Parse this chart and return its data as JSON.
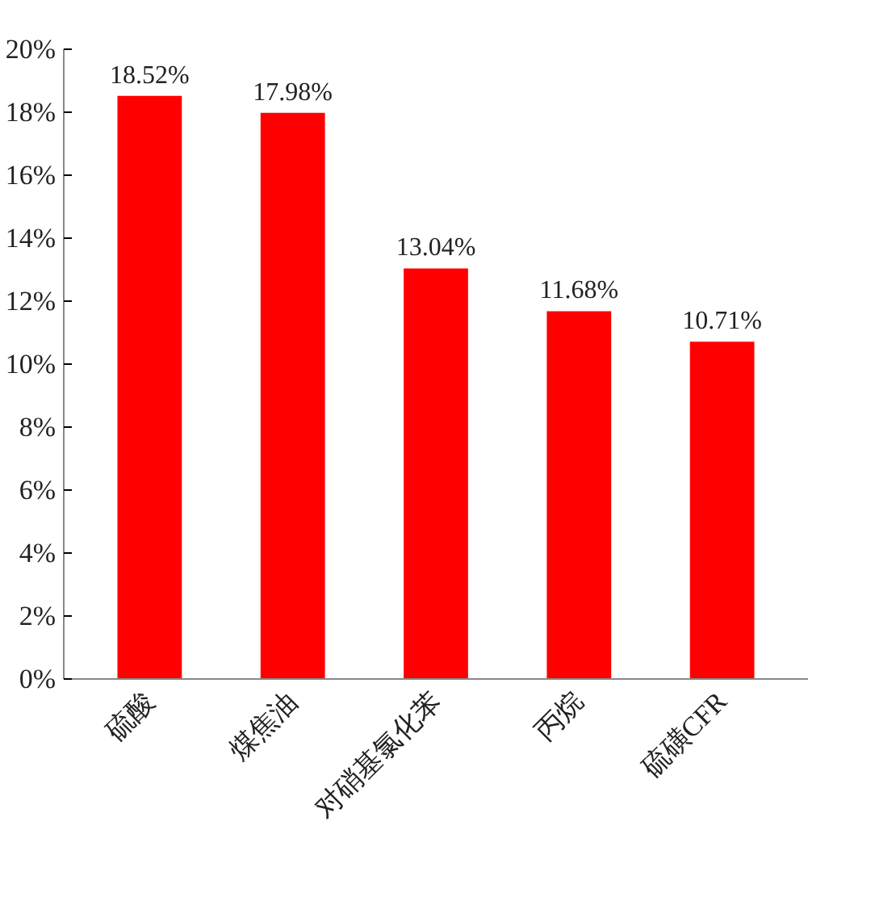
{
  "chart_data": {
    "type": "bar",
    "categories": [
      "硫酸",
      "煤焦油",
      "对硝基氯化苯",
      "丙烷",
      "硫磺CFR"
    ],
    "values": [
      18.52,
      17.98,
      13.04,
      11.68,
      10.71
    ],
    "value_labels": [
      "18.52%",
      "17.98%",
      "13.04%",
      "11.68%",
      "10.71%"
    ],
    "color": "#ff0000",
    "ylim": [
      0,
      20
    ],
    "yticks": [
      {
        "value": 0,
        "label": "0%"
      },
      {
        "value": 2,
        "label": "2%"
      },
      {
        "value": 4,
        "label": "4%"
      },
      {
        "value": 6,
        "label": "6%"
      },
      {
        "value": 8,
        "label": "8%"
      },
      {
        "value": 10,
        "label": "10%"
      },
      {
        "value": 12,
        "label": "12%"
      },
      {
        "value": 14,
        "label": "14%"
      },
      {
        "value": 16,
        "label": "16%"
      },
      {
        "value": 18,
        "label": "18%"
      },
      {
        "value": 20,
        "label": "20%"
      }
    ],
    "grid": false
  }
}
